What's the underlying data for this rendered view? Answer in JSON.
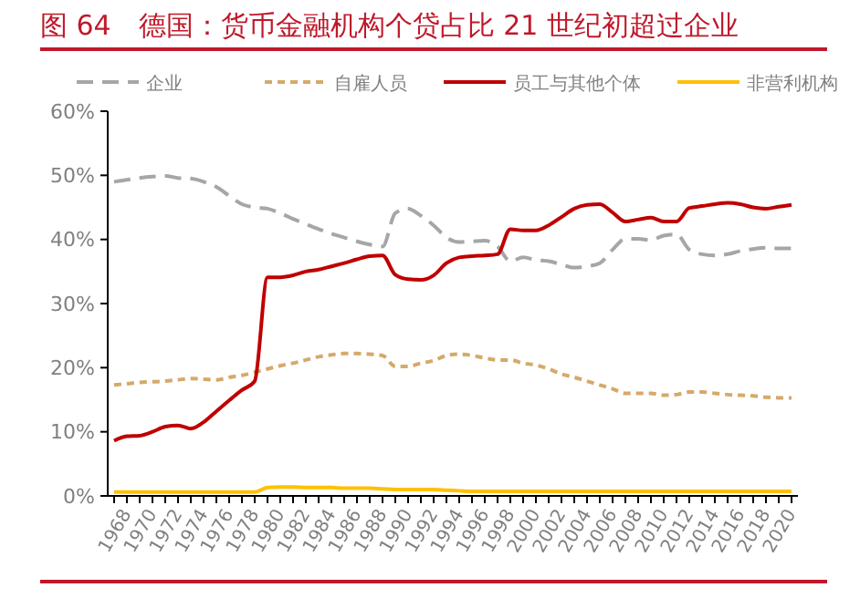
{
  "chart_data": {
    "type": "line",
    "title": "图 64　德国：货币金融机构个贷占比 21 世纪初超过企业",
    "categories": [
      "1968",
      null,
      "1970",
      null,
      "1972",
      null,
      "1974",
      null,
      "1976",
      null,
      "1978",
      null,
      "1980",
      null,
      "1982",
      null,
      "1984",
      null,
      "1986",
      null,
      "1988",
      null,
      "1990",
      null,
      "1992",
      null,
      "1994",
      null,
      "1996",
      null,
      "1998",
      null,
      "2000",
      null,
      "2002",
      null,
      "2004",
      null,
      "2006",
      null,
      "2008",
      null,
      "2010",
      null,
      "2012",
      null,
      "2014",
      null,
      "2016",
      null,
      "2018",
      null,
      "2020",
      null
    ],
    "ylim": [
      0,
      60
    ],
    "yticks": [
      {
        "value": 0,
        "label": "0%"
      },
      {
        "value": 10,
        "label": "10%"
      },
      {
        "value": 20,
        "label": "20%"
      },
      {
        "value": 30,
        "label": "30%"
      },
      {
        "value": 40,
        "label": "40%"
      },
      {
        "value": 50,
        "label": "50%"
      },
      {
        "value": 60,
        "label": "60%"
      }
    ],
    "grid": false,
    "legend": "top",
    "marker": "none",
    "series": [
      {
        "name": "企业",
        "color": "#a6a6a6",
        "line_style": "dashed",
        "values": [
          49.0,
          49.3,
          49.6,
          49.8,
          49.9,
          49.6,
          49.5,
          49.0,
          48.2,
          46.8,
          45.5,
          45.0,
          44.8,
          44.1,
          43.2,
          42.4,
          41.6,
          40.9,
          40.3,
          39.7,
          39.2,
          38.9,
          44.1,
          44.8,
          43.7,
          42.2,
          40.3,
          39.6,
          39.7,
          39.8,
          38.9,
          36.6,
          37.2,
          36.8,
          36.6,
          36.1,
          35.6,
          35.8,
          36.3,
          38.4,
          40.1,
          40.1,
          39.9,
          40.6,
          40.8,
          38.4,
          37.7,
          37.5,
          37.7,
          38.2,
          38.5,
          38.7,
          38.6,
          38.6
        ]
      },
      {
        "name": "自雇人员",
        "color": "#d4a96a",
        "line_style": "dotted",
        "values": [
          17.3,
          17.5,
          17.7,
          17.8,
          17.9,
          18.1,
          18.3,
          18.2,
          18.1,
          18.5,
          18.8,
          19.3,
          19.8,
          20.3,
          20.7,
          21.2,
          21.7,
          22.0,
          22.2,
          22.2,
          22.1,
          21.9,
          20.2,
          20.2,
          20.7,
          21.1,
          21.9,
          22.1,
          21.9,
          21.5,
          21.2,
          21.2,
          20.7,
          20.4,
          19.8,
          19.0,
          18.5,
          17.9,
          17.3,
          16.7,
          16.0,
          16.0,
          16.0,
          15.7,
          15.8,
          16.2,
          16.2,
          16.0,
          15.8,
          15.7,
          15.6,
          15.4,
          15.3,
          15.3
        ]
      },
      {
        "name": "员工与其他个体",
        "color": "#c00000",
        "line_style": "solid",
        "values": [
          8.6,
          9.3,
          9.4,
          10.0,
          10.8,
          11.0,
          10.5,
          11.5,
          13.2,
          14.9,
          16.5,
          17.9,
          34.1,
          34.1,
          34.4,
          35.0,
          35.3,
          35.8,
          36.3,
          36.9,
          37.4,
          37.5,
          34.5,
          33.8,
          33.7,
          34.4,
          36.3,
          37.2,
          37.4,
          37.5,
          37.7,
          41.6,
          41.4,
          41.4,
          42.2,
          43.5,
          44.8,
          45.4,
          45.5,
          44.2,
          42.8,
          43.1,
          43.4,
          42.8,
          42.8,
          44.9,
          45.2,
          45.5,
          45.7,
          45.5,
          45.0,
          44.8,
          45.1,
          45.4
        ]
      },
      {
        "name": "非营利机构",
        "color": "#ffc000",
        "line_style": "solid",
        "values": [
          0.6,
          0.6,
          0.6,
          0.6,
          0.6,
          0.6,
          0.6,
          0.6,
          0.6,
          0.6,
          0.6,
          0.6,
          1.3,
          1.4,
          1.4,
          1.3,
          1.3,
          1.3,
          1.2,
          1.2,
          1.2,
          1.1,
          1.0,
          1.0,
          1.0,
          1.0,
          0.9,
          0.8,
          0.7,
          0.7,
          0.7,
          0.7,
          0.7,
          0.7,
          0.7,
          0.7,
          0.7,
          0.7,
          0.7,
          0.7,
          0.7,
          0.7,
          0.7,
          0.7,
          0.7,
          0.7,
          0.7,
          0.7,
          0.7,
          0.7,
          0.7,
          0.7,
          0.7,
          0.7
        ]
      }
    ]
  }
}
